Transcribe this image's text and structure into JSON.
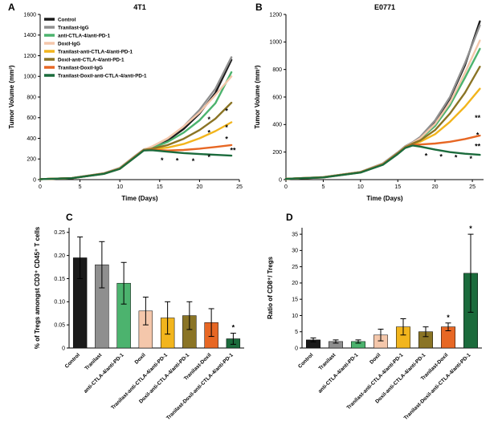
{
  "figure": {
    "panels": [
      {
        "letter": "A"
      },
      {
        "letter": "B"
      },
      {
        "letter": "C"
      },
      {
        "letter": "D"
      }
    ]
  },
  "colors": {
    "control": "#1a1a1a",
    "tranilast_igg": "#8f8f8f",
    "anti_ctla4_anti_pd1": "#4cb36e",
    "doxil_igg": "#f4c7ab",
    "tranilast_anti_ctla4_anti_pd1": "#f2b51d",
    "doxil_anti_ctla4_anti_pd1": "#8a7425",
    "tranilast_doxil_igg": "#e76724",
    "tranilast_doxil_anti_ctla4_anti_pd1": "#1b6b3c"
  },
  "chart_data": [
    {
      "type": "line",
      "panel": "A",
      "title": "4T1",
      "xlabel": "Time (Days)",
      "ylabel": "Tumor Volume (mm³)",
      "xlim": [
        0,
        25
      ],
      "ylim": [
        0,
        1600
      ],
      "xticks": [
        0,
        5,
        10,
        15,
        20,
        25
      ],
      "yticks": [
        0,
        200,
        400,
        600,
        800,
        1000,
        1200,
        1400,
        1600
      ],
      "legend": true,
      "legend_position": "top-left",
      "series": [
        {
          "name": "Control",
          "color": "#1a1a1a",
          "x": [
            0,
            4,
            8,
            10,
            12,
            13,
            14,
            16,
            18,
            20,
            22,
            24
          ],
          "y": [
            5,
            15,
            60,
            110,
            230,
            290,
            310,
            380,
            490,
            640,
            840,
            1160
          ]
        },
        {
          "name": "Tranilast-IgG",
          "color": "#8f8f8f",
          "x": [
            0,
            4,
            8,
            10,
            12,
            13,
            14,
            16,
            18,
            20,
            22,
            24
          ],
          "y": [
            5,
            15,
            62,
            115,
            235,
            292,
            315,
            395,
            515,
            675,
            880,
            1185
          ]
        },
        {
          "name": "anti-CTLA-4/anti-PD-1",
          "color": "#4cb36e",
          "x": [
            0,
            4,
            8,
            10,
            12,
            13,
            14,
            16,
            18,
            20,
            22,
            24
          ],
          "y": [
            5,
            14,
            58,
            108,
            228,
            288,
            305,
            365,
            455,
            575,
            740,
            1040
          ]
        },
        {
          "name": "Doxil-IgG",
          "color": "#f4c7ab",
          "x": [
            0,
            4,
            8,
            10,
            12,
            13,
            14,
            16,
            18,
            20,
            22,
            24
          ],
          "y": [
            5,
            15,
            60,
            112,
            232,
            290,
            320,
            400,
            515,
            650,
            820,
            1000
          ]
        },
        {
          "name": "Tranilast-anti-CTLA-4/anti-PD-1",
          "color": "#f2b51d",
          "x": [
            0,
            4,
            8,
            10,
            12,
            13,
            14,
            16,
            18,
            20,
            22,
            24
          ],
          "y": [
            5,
            14,
            58,
            106,
            226,
            286,
            295,
            310,
            345,
            400,
            470,
            555
          ]
        },
        {
          "name": "Doxil-anti-CTLA-4/anti-PD-1",
          "color": "#8a7425",
          "x": [
            0,
            4,
            8,
            10,
            12,
            13,
            14,
            16,
            18,
            20,
            22,
            24
          ],
          "y": [
            5,
            15,
            59,
            108,
            228,
            288,
            300,
            335,
            395,
            480,
            590,
            745
          ]
        },
        {
          "name": "Tranilast-Doxil-IgG",
          "color": "#e76724",
          "x": [
            0,
            4,
            8,
            10,
            12,
            13,
            14,
            16,
            18,
            20,
            22,
            24
          ],
          "y": [
            5,
            14,
            57,
            105,
            224,
            284,
            290,
            282,
            287,
            300,
            316,
            335
          ]
        },
        {
          "name": "Tranilast-Doxil-anti-CTLA-4/anti-PD-1",
          "color": "#1b6b3c",
          "x": [
            0,
            4,
            8,
            10,
            12,
            13,
            14,
            16,
            18,
            20,
            22,
            24
          ],
          "y": [
            5,
            14,
            56,
            104,
            222,
            282,
            285,
            270,
            257,
            248,
            240,
            232
          ]
        }
      ],
      "annotations": [
        {
          "x": 15.3,
          "y": 165,
          "text": "*"
        },
        {
          "x": 17.2,
          "y": 160,
          "text": "*"
        },
        {
          "x": 19.2,
          "y": 155,
          "text": "*"
        },
        {
          "x": 21.2,
          "y": 560,
          "text": "*"
        },
        {
          "x": 21.2,
          "y": 430,
          "text": "*"
        },
        {
          "x": 21.2,
          "y": 195,
          "text": "*"
        },
        {
          "x": 23.4,
          "y": 640,
          "text": "*"
        },
        {
          "x": 23.4,
          "y": 480,
          "text": "*"
        },
        {
          "x": 23.4,
          "y": 370,
          "text": "*"
        },
        {
          "x": 24.2,
          "y": 262,
          "text": "**"
        }
      ]
    },
    {
      "type": "line",
      "panel": "B",
      "title": "E0771",
      "xlabel": "Time (Days)",
      "ylabel": "Tumor Volume (mm³)",
      "xlim": [
        0,
        26.5
      ],
      "ylim": [
        0,
        1200
      ],
      "xticks": [
        0,
        5,
        10,
        15,
        20,
        25
      ],
      "yticks": [
        0,
        200,
        400,
        600,
        800,
        1000,
        1200
      ],
      "legend": false,
      "series": [
        {
          "name": "Control",
          "color": "#1a1a1a",
          "x": [
            0,
            5,
            10,
            13,
            15,
            16,
            17,
            18,
            20,
            22,
            24,
            26
          ],
          "y": [
            5,
            18,
            55,
            115,
            195,
            240,
            270,
            305,
            420,
            590,
            830,
            1150
          ]
        },
        {
          "name": "Tranilast-IgG",
          "color": "#8f8f8f",
          "x": [
            0,
            5,
            10,
            13,
            15,
            16,
            17,
            18,
            20,
            22,
            24,
            26
          ],
          "y": [
            5,
            18,
            56,
            118,
            198,
            243,
            272,
            310,
            430,
            600,
            845,
            1120
          ]
        },
        {
          "name": "anti-CTLA-4/anti-PD-1",
          "color": "#4cb36e",
          "x": [
            0,
            5,
            10,
            13,
            15,
            16,
            17,
            18,
            20,
            22,
            24,
            26
          ],
          "y": [
            5,
            17,
            54,
            113,
            192,
            237,
            265,
            295,
            390,
            540,
            740,
            950
          ]
        },
        {
          "name": "Doxil-IgG",
          "color": "#f4c7ab",
          "x": [
            0,
            5,
            10,
            13,
            15,
            16,
            17,
            18,
            20,
            22,
            24,
            26
          ],
          "y": [
            5,
            18,
            55,
            115,
            194,
            239,
            268,
            300,
            405,
            560,
            775,
            1010
          ]
        },
        {
          "name": "Tranilast-anti-CTLA-4/anti-PD-1",
          "color": "#f2b51d",
          "x": [
            0,
            5,
            10,
            13,
            15,
            16,
            17,
            18,
            20,
            22,
            24,
            26
          ],
          "y": [
            5,
            17,
            53,
            111,
            190,
            234,
            258,
            275,
            330,
            420,
            530,
            660
          ]
        },
        {
          "name": "Doxil-anti-CTLA-4/anti-PD-1",
          "color": "#8a7425",
          "x": [
            0,
            5,
            10,
            13,
            15,
            16,
            17,
            18,
            20,
            22,
            24,
            26
          ],
          "y": [
            5,
            17,
            54,
            112,
            192,
            236,
            262,
            285,
            360,
            480,
            630,
            820
          ]
        },
        {
          "name": "Tranilast-Doxil-IgG",
          "color": "#e76724",
          "x": [
            0,
            5,
            10,
            13,
            15,
            16,
            17,
            18,
            20,
            22,
            24,
            26
          ],
          "y": [
            5,
            16,
            52,
            110,
            188,
            232,
            252,
            255,
            262,
            275,
            295,
            320
          ]
        },
        {
          "name": "Tranilast-Doxil-anti-CTLA-4/anti-PD-1",
          "color": "#1b6b3c",
          "x": [
            0,
            5,
            10,
            13,
            15,
            16,
            17,
            18,
            20,
            22,
            24,
            26
          ],
          "y": [
            5,
            16,
            51,
            108,
            186,
            230,
            248,
            240,
            218,
            200,
            188,
            180
          ]
        }
      ],
      "annotations": [
        {
          "x": 18.8,
          "y": 155,
          "text": "*"
        },
        {
          "x": 20.8,
          "y": 148,
          "text": "*"
        },
        {
          "x": 22.8,
          "y": 142,
          "text": "*"
        },
        {
          "x": 24.8,
          "y": 135,
          "text": "*"
        },
        {
          "x": 25.7,
          "y": 430,
          "text": "**"
        },
        {
          "x": 25.7,
          "y": 305,
          "text": "*"
        },
        {
          "x": 25.7,
          "y": 225,
          "text": "**"
        }
      ]
    },
    {
      "type": "bar",
      "panel": "C",
      "title": "",
      "ylabel": "% of Tregs amongst CD3⁺ CD45⁺ T cells",
      "categories": [
        "Control",
        "Tranilast",
        "anti-CTLA-4/anti-PD-1",
        "Doxil",
        "Tranilast-anti-CTLA-4/anti-PD-1",
        "Doxil-anti-CTLA-4/anti-PD-1",
        "Tranilast-Doxil",
        "Tranilast-Doxil-anti-CTLA-4/anti-PD-1"
      ],
      "values": [
        0.195,
        0.18,
        0.14,
        0.08,
        0.065,
        0.07,
        0.055,
        0.02
      ],
      "errors": [
        0.045,
        0.05,
        0.045,
        0.03,
        0.035,
        0.03,
        0.03,
        0.012
      ],
      "colors": [
        "#1a1a1a",
        "#8f8f8f",
        "#4cb36e",
        "#f4c7ab",
        "#f2b51d",
        "#8a7425",
        "#e76724",
        "#1b6b3c"
      ],
      "ylim": [
        0,
        0.26
      ],
      "yticks": [
        0,
        0.05,
        0.1,
        0.15,
        0.2,
        0.25
      ],
      "ytick_labels": [
        "0",
        "0.05",
        "0.10",
        "0.15",
        "0.20",
        "0.25"
      ],
      "stars": [
        {
          "index": 7,
          "text": "*"
        }
      ]
    },
    {
      "type": "bar",
      "panel": "D",
      "title": "",
      "ylabel": "Ratio of CD8⁺/ Tregs",
      "categories": [
        "Control",
        "Tranilast",
        "anti-CTLA-4/anti-PD-1",
        "Doxil",
        "Tranilast-anti-CTLA-4/anti-PD-1",
        "Doxil-anti-CTLA-4/anti-PD-1",
        "Tranilast-Doxil",
        "Tranilast-Doxil-anti-CTLA-4/anti-PD-1"
      ],
      "values": [
        2.5,
        2.0,
        2.0,
        4.0,
        6.5,
        5.0,
        6.5,
        23.0
      ],
      "errors": [
        0.6,
        0.5,
        0.5,
        1.8,
        2.5,
        1.5,
        1.2,
        12.0
      ],
      "colors": [
        "#1a1a1a",
        "#8f8f8f",
        "#4cb36e",
        "#f4c7ab",
        "#f2b51d",
        "#8a7425",
        "#e76724",
        "#1b6b3c"
      ],
      "ylim": [
        0,
        37
      ],
      "yticks": [
        0,
        5,
        10,
        15,
        20,
        25,
        30,
        35
      ],
      "ytick_labels": [
        "0",
        "5",
        "10",
        "15",
        "20",
        "25",
        "30",
        "35"
      ],
      "stars": [
        {
          "index": 6,
          "text": "*"
        },
        {
          "index": 7,
          "text": "*"
        }
      ]
    }
  ]
}
